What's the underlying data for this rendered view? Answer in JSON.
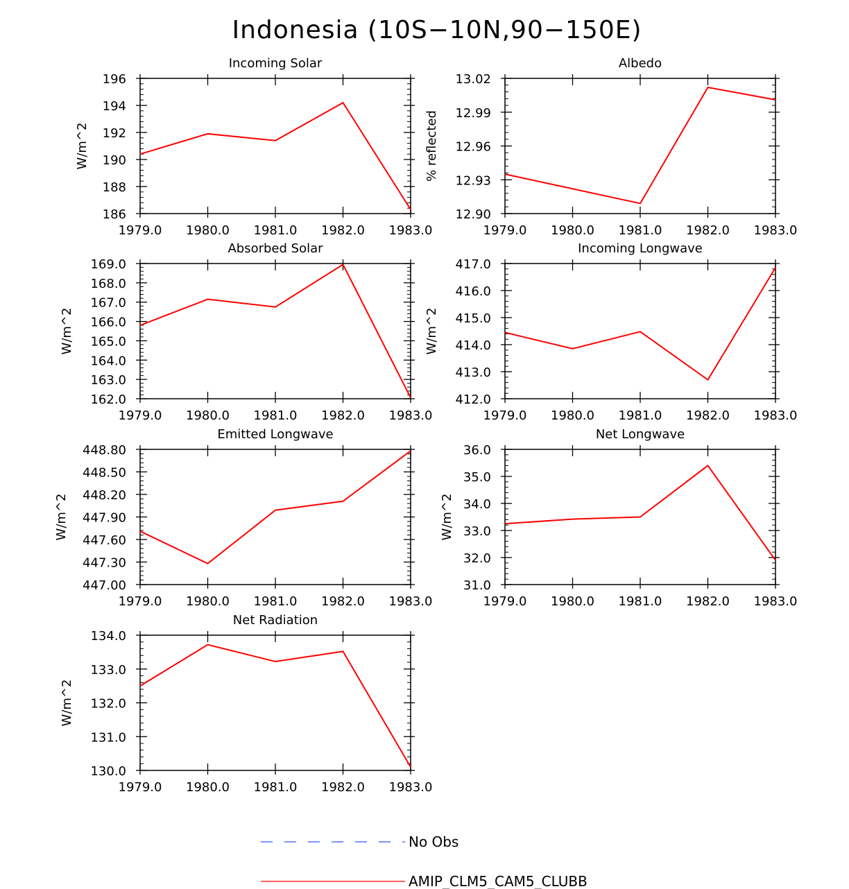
{
  "title": "Indonesia (10S−10N,90−150E)",
  "legend": [
    {
      "label": "No Obs",
      "color": "#3355ff",
      "dash": true
    },
    {
      "label": "AMIP_CLM5_CAM5_CLUBB",
      "color": "#ff0000",
      "dash": false
    }
  ],
  "chart_data": [
    {
      "type": "line",
      "title": "Incoming Solar",
      "ylabel": "W/m^2",
      "x": [
        1979,
        1980,
        1981,
        1982,
        1983
      ],
      "x_ticks": [
        "1979.0",
        "1980.0",
        "1981.0",
        "1982.0",
        "1983.0"
      ],
      "ylim": [
        186,
        196
      ],
      "y_ticks": [
        "186",
        "188",
        "190",
        "192",
        "194",
        "196"
      ],
      "series": [
        {
          "name": "AMIP_CLM5_CAM5_CLUBB",
          "values": [
            190.4,
            191.9,
            191.4,
            194.2,
            186.3
          ]
        }
      ]
    },
    {
      "type": "line",
      "title": "Albedo",
      "ylabel": "% reflected",
      "x": [
        1979,
        1980,
        1981,
        1982,
        1983
      ],
      "x_ticks": [
        "1979.0",
        "1980.0",
        "1981.0",
        "1982.0",
        "1983.0"
      ],
      "ylim": [
        12.9,
        13.02
      ],
      "y_ticks": [
        "12.90",
        "12.93",
        "12.96",
        "12.99",
        "13.02"
      ],
      "series": [
        {
          "name": "AMIP_CLM5_CAM5_CLUBB",
          "values": [
            12.935,
            12.922,
            12.909,
            13.012,
            13.001
          ]
        }
      ]
    },
    {
      "type": "line",
      "title": "Absorbed Solar",
      "ylabel": "W/m^2",
      "x": [
        1979,
        1980,
        1981,
        1982,
        1983
      ],
      "x_ticks": [
        "1979.0",
        "1980.0",
        "1981.0",
        "1982.0",
        "1983.0"
      ],
      "ylim": [
        162,
        169
      ],
      "y_ticks": [
        "162.0",
        "163.0",
        "164.0",
        "165.0",
        "166.0",
        "167.0",
        "168.0",
        "169.0"
      ],
      "series": [
        {
          "name": "AMIP_CLM5_CAM5_CLUBB",
          "values": [
            165.8,
            167.15,
            166.75,
            168.95,
            162.05
          ]
        }
      ]
    },
    {
      "type": "line",
      "title": "Incoming Longwave",
      "ylabel": "W/m^2",
      "x": [
        1979,
        1980,
        1981,
        1982,
        1983
      ],
      "x_ticks": [
        "1979.0",
        "1980.0",
        "1981.0",
        "1982.0",
        "1983.0"
      ],
      "ylim": [
        412,
        417
      ],
      "y_ticks": [
        "412.0",
        "413.0",
        "414.0",
        "415.0",
        "416.0",
        "417.0"
      ],
      "series": [
        {
          "name": "AMIP_CLM5_CAM5_CLUBB",
          "values": [
            414.45,
            413.85,
            414.48,
            412.7,
            416.85
          ]
        }
      ]
    },
    {
      "type": "line",
      "title": "Emitted Longwave",
      "ylabel": "W/m^2",
      "x": [
        1979,
        1980,
        1981,
        1982,
        1983
      ],
      "x_ticks": [
        "1979.0",
        "1980.0",
        "1981.0",
        "1982.0",
        "1983.0"
      ],
      "ylim": [
        447.0,
        448.8
      ],
      "y_ticks": [
        "447.00",
        "447.30",
        "447.60",
        "447.90",
        "448.20",
        "448.50",
        "448.80"
      ],
      "series": [
        {
          "name": "AMIP_CLM5_CAM5_CLUBB",
          "values": [
            447.71,
            447.28,
            447.99,
            448.11,
            448.78
          ]
        }
      ]
    },
    {
      "type": "line",
      "title": "Net Longwave",
      "ylabel": "W/m^2",
      "x": [
        1979,
        1980,
        1981,
        1982,
        1983
      ],
      "x_ticks": [
        "1979.0",
        "1980.0",
        "1981.0",
        "1982.0",
        "1983.0"
      ],
      "ylim": [
        31,
        36
      ],
      "y_ticks": [
        "31.0",
        "32.0",
        "33.0",
        "34.0",
        "35.0",
        "36.0"
      ],
      "series": [
        {
          "name": "AMIP_CLM5_CAM5_CLUBB",
          "values": [
            33.25,
            33.42,
            33.5,
            35.4,
            31.9
          ]
        }
      ]
    },
    {
      "type": "line",
      "title": "Net Radiation",
      "ylabel": "W/m^2",
      "x": [
        1979,
        1980,
        1981,
        1982,
        1983
      ],
      "x_ticks": [
        "1979.0",
        "1980.0",
        "1981.0",
        "1982.0",
        "1983.0"
      ],
      "ylim": [
        130,
        134
      ],
      "y_ticks": [
        "130.0",
        "131.0",
        "132.0",
        "133.0",
        "134.0"
      ],
      "series": [
        {
          "name": "AMIP_CLM5_CAM5_CLUBB",
          "values": [
            132.5,
            133.72,
            133.22,
            133.52,
            130.1
          ]
        }
      ]
    }
  ]
}
